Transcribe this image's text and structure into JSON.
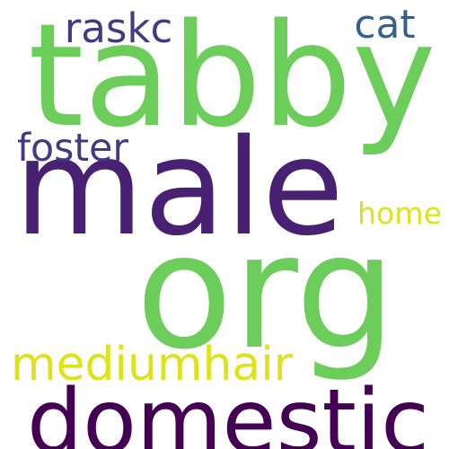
{
  "words": [
    {
      "text": "tabby",
      "color": "#6ccd5a"
    },
    {
      "text": "male",
      "color": "#482173"
    },
    {
      "text": "org",
      "color": "#6ccd5a"
    },
    {
      "text": "domestic",
      "color": "#440154"
    },
    {
      "text": "mediumhair",
      "color": "#dde318"
    },
    {
      "text": "raskc",
      "color": "#443983"
    },
    {
      "text": "cat",
      "color": "#355f8d"
    },
    {
      "text": "foster",
      "color": "#443983"
    },
    {
      "text": "home",
      "color": "#dde318"
    }
  ]
}
